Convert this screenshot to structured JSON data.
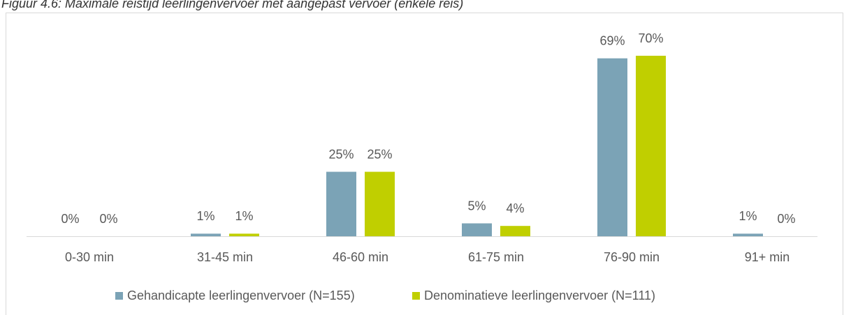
{
  "chart_data": {
    "type": "bar",
    "title": "Figuur 4.6: Maximale reistijd leerlingenvervoer met aangepast vervoer (enkele reis)",
    "categories": [
      "0-30 min",
      "31-45 min",
      "46-60 min",
      "61-75 min",
      "76-90 min",
      "91+ min"
    ],
    "series": [
      {
        "name": "Gehandicapte leerlingenvervoer (N=155)",
        "color": "#7ba3b6",
        "values": [
          0,
          1,
          25,
          5,
          69,
          1
        ],
        "value_labels": [
          "0%",
          "1%",
          "25%",
          "5%",
          "69%",
          "1%"
        ]
      },
      {
        "name": "Denominatieve leerlingenvervoer (N=111)",
        "color": "#c0cf00",
        "values": [
          0,
          1,
          25,
          4,
          70,
          0
        ],
        "value_labels": [
          "0%",
          "1%",
          "25%",
          "4%",
          "70%",
          "0%"
        ]
      }
    ],
    "legend": "bottom"
  }
}
